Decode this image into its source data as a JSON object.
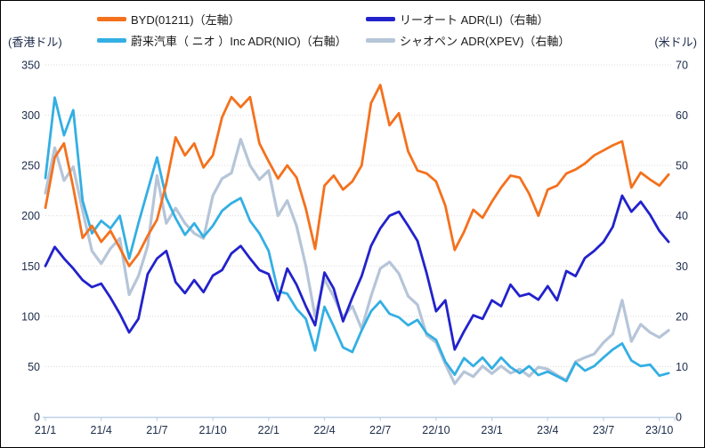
{
  "window": {
    "background": "#ffffff",
    "border_color": "#000000"
  },
  "legend_rows": 2,
  "chart_data": {
    "type": "line",
    "title": "",
    "description_visible_text_only": "Stock price chart Jan 2021 - Oct 2023: BYD in HKD (left axis), LI / NIO / XPEV ADRs in USD (right axis)",
    "left_axis": {
      "label": "(香港ドル)",
      "min": 0,
      "max": 350,
      "tick_step": 50,
      "ticks": [
        0,
        50,
        100,
        150,
        200,
        250,
        300,
        350
      ]
    },
    "right_axis": {
      "label": "(米ドル)",
      "min": 0,
      "max": 70,
      "tick_step": 10,
      "ticks": [
        0,
        10,
        20,
        30,
        40,
        50,
        60,
        70
      ]
    },
    "x_axis": {
      "tick_labels": [
        "21/1",
        "21/4",
        "21/7",
        "21/10",
        "22/1",
        "22/4",
        "22/7",
        "22/10",
        "23/1",
        "23/4",
        "23/7",
        "23/10"
      ],
      "tick_months": [
        0,
        3,
        6,
        9,
        12,
        15,
        18,
        21,
        24,
        27,
        30,
        33
      ],
      "grid": false
    },
    "grid_horizontal": true,
    "sample_interval_months": 0.5,
    "start_month_label": "21/1",
    "legend_position": "top",
    "series": [
      {
        "name": "BYD(01211)（左軸）",
        "axis": "left",
        "color": "#F4711D",
        "values": [
          208,
          258,
          272,
          228,
          178,
          190,
          174,
          185,
          168,
          150,
          162,
          180,
          196,
          232,
          278,
          260,
          272,
          248,
          260,
          298,
          318,
          308,
          318,
          272,
          254,
          237,
          250,
          238,
          207,
          167,
          230,
          240,
          226,
          234,
          250,
          312,
          330,
          290,
          302,
          264,
          245,
          242,
          234,
          210,
          166,
          184,
          206,
          198,
          214,
          228,
          240,
          238,
          222,
          200,
          226,
          230,
          242,
          246,
          252,
          260,
          265,
          270,
          274,
          228,
          243,
          236,
          230,
          241
        ]
      },
      {
        "name": "リーオート ADR(LI)（右軸）",
        "axis": "right",
        "color": "#2222CC",
        "values": [
          30.0,
          33.8,
          31.5,
          29.5,
          27.2,
          25.8,
          26.5,
          23.7,
          20.5,
          16.8,
          19.5,
          28.4,
          31.5,
          33.0,
          26.8,
          24.6,
          27.2,
          24.8,
          28.1,
          29.2,
          32.5,
          34.0,
          31.5,
          29.2,
          28.4,
          23.2,
          29.5,
          26.3,
          22.0,
          18.2,
          28.7,
          25.5,
          19.0,
          23.7,
          28.0,
          34.0,
          37.5,
          40.0,
          40.8,
          38.0,
          35.0,
          28.5,
          21.0,
          23.2,
          13.4,
          17.0,
          20.2,
          19.5,
          23.2,
          22.0,
          26.3,
          24.0,
          24.5,
          23.3,
          26.0,
          23.2,
          29.0,
          28.0,
          31.6,
          33.0,
          34.8,
          37.8,
          44.0,
          40.8,
          42.8,
          40.2,
          37.0,
          34.8
        ]
      },
      {
        "name": "蔚来汽車（ ニオ ）Inc ADR(NIO)（右軸）",
        "axis": "right",
        "color": "#33AFE3",
        "values": [
          47.5,
          63.5,
          56.0,
          61.0,
          43.0,
          36.5,
          39.0,
          37.5,
          40.0,
          31.5,
          38.5,
          45.0,
          51.6,
          43.5,
          39.5,
          36.2,
          38.5,
          35.8,
          38.0,
          41.0,
          42.5,
          43.5,
          39.0,
          36.5,
          33.0,
          25.0,
          24.5,
          21.5,
          19.5,
          13.2,
          21.9,
          18.0,
          13.8,
          12.9,
          17.2,
          21.0,
          23.0,
          20.5,
          19.8,
          18.2,
          19.3,
          16.6,
          15.3,
          11.0,
          8.4,
          11.7,
          10.1,
          11.8,
          9.6,
          11.8,
          9.9,
          8.7,
          10.1,
          8.3,
          9.0,
          8.1,
          7.1,
          10.8,
          9.2,
          10.1,
          11.8,
          13.4,
          14.6,
          11.2,
          10.1,
          10.4,
          8.2,
          8.7
        ]
      },
      {
        "name": "シャオペン ADR(XPEV)（右軸）",
        "axis": "right",
        "color": "#B6C5D8",
        "values": [
          44.5,
          53.5,
          47.0,
          49.7,
          41.0,
          33.0,
          30.5,
          33.5,
          35.5,
          24.3,
          28.0,
          34.0,
          48.0,
          38.5,
          41.5,
          38.5,
          36.5,
          35.5,
          44.0,
          47.4,
          48.5,
          55.2,
          50.0,
          47.2,
          49.0,
          40.0,
          43.0,
          38.0,
          30.0,
          20.0,
          27.4,
          23.9,
          19.8,
          22.0,
          17.5,
          24.0,
          29.5,
          30.8,
          28.5,
          24.0,
          22.3,
          16.2,
          14.8,
          10.5,
          6.6,
          9.0,
          8.0,
          10.1,
          8.6,
          10.1,
          8.7,
          9.5,
          8.1,
          9.9,
          9.5,
          8.3,
          7.3,
          11.0,
          11.8,
          12.5,
          14.8,
          16.5,
          23.2,
          15.0,
          18.4,
          16.8,
          15.8,
          17.2
        ]
      }
    ],
    "style": {
      "gridline_color": "#d9d9d9",
      "axis_line_color": "#bdd1e8",
      "tick_label_color": "#1c2b4a"
    }
  }
}
